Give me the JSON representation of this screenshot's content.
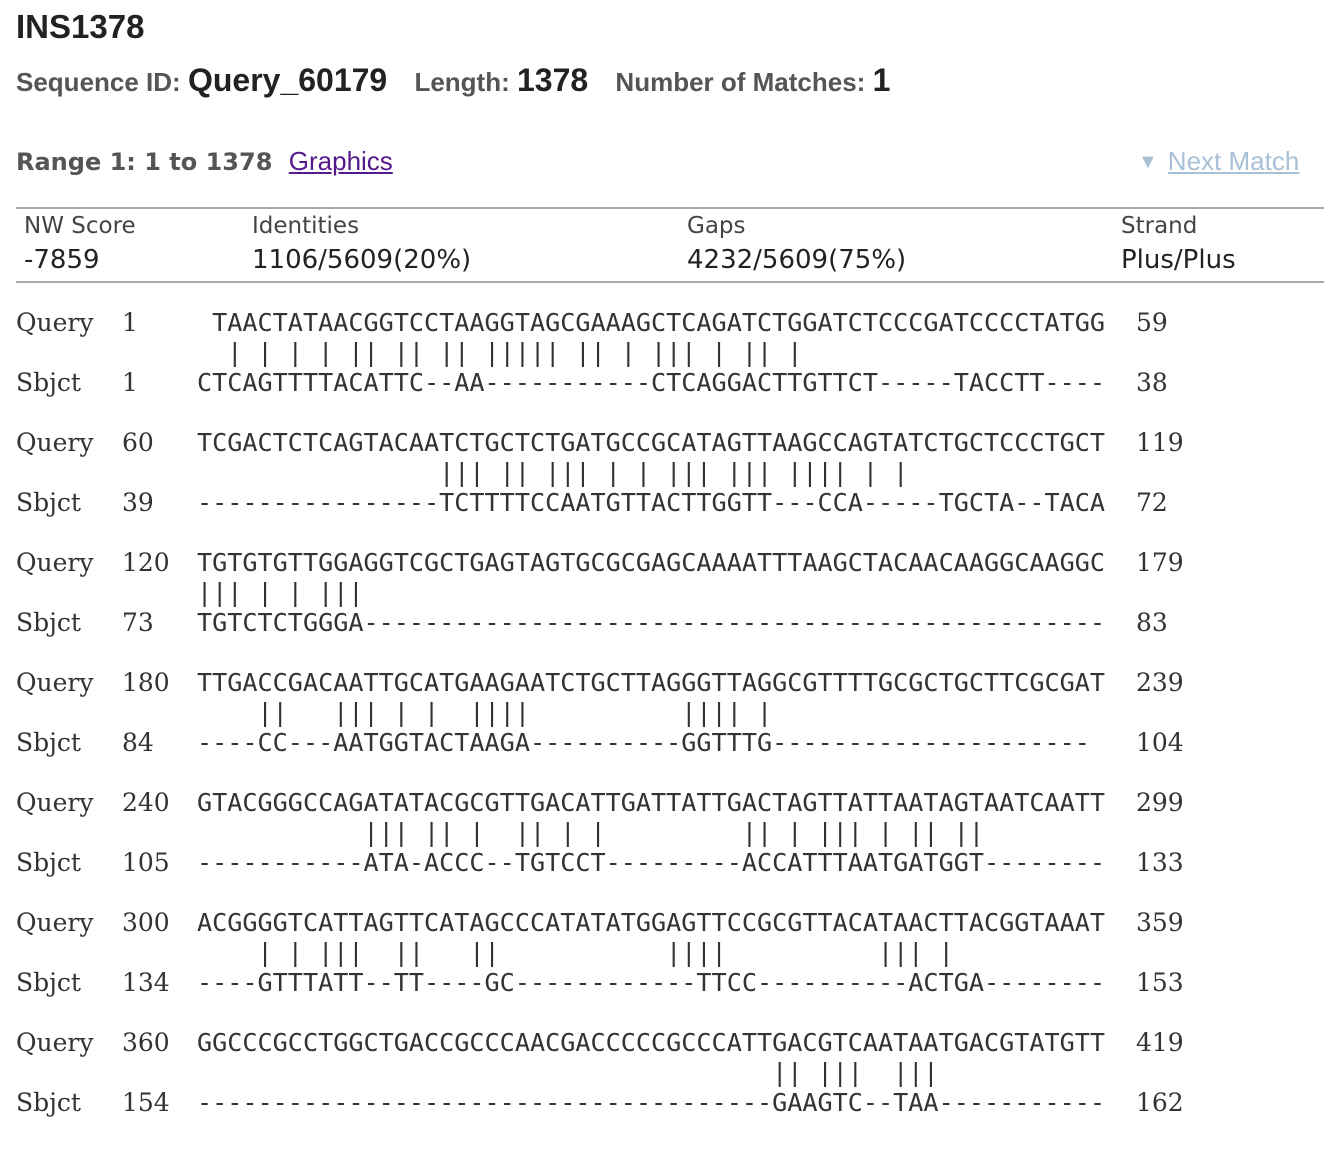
{
  "header": {
    "title": "INS1378",
    "seq_id_label": "Sequence ID:",
    "seq_id": "Query_60179",
    "length_label": "Length:",
    "length": "1378",
    "matches_label": "Number of Matches:",
    "matches": "1"
  },
  "range": {
    "label": "Range 1: 1 to 1378",
    "graphics_link": "Graphics",
    "next_match": "Next Match"
  },
  "stats": {
    "score_label": "NW Score",
    "score": "-7859",
    "identities_label": "Identities",
    "identities": "1106/5609(20%)",
    "gaps_label": "Gaps",
    "gaps": "4232/5609(75%)",
    "strand_label": "Strand",
    "strand": "Plus/Plus"
  },
  "alignment": [
    {
      "query_label": "Query",
      "query_start": "1",
      "query_seq": " TAACTATAACGGTCCTAAGGTAGCGAAAGCTCAGATCTGGATCTCCCGATCCCCTATGG",
      "query_end": "59",
      "match": "  | | | | || || || ||||| || | ||| | || |",
      "sbjct_label": "Sbjct",
      "sbjct_start": "1",
      "sbjct_seq": "CTCAGTTTTACATTC--AA-----------CTCAGGACTTGTTCT-----TACCTT----",
      "sbjct_end": "38"
    },
    {
      "query_label": "Query",
      "query_start": "60",
      "query_seq": "TCGACTCTCAGTACAATCTGCTCTGATGCCGCATAGTTAAGCCAGTATCTGCTCCCTGCT",
      "query_end": "119",
      "match": "                ||| || ||| | | ||| ||| |||| | |",
      "sbjct_label": "Sbjct",
      "sbjct_start": "39",
      "sbjct_seq": "----------------TCTTTTCCAATGTTACTTGGTT---CCA-----TGCTA--TACA",
      "sbjct_end": "72"
    },
    {
      "query_label": "Query",
      "query_start": "120",
      "query_seq": "TGTGTGTTGGAGGTCGCTGAGTAGTGCGCGAGCAAAATTTAAGCTACAACAAGGCAAGGC",
      "query_end": "179",
      "match": "||| | | |||",
      "sbjct_label": "Sbjct",
      "sbjct_start": "73",
      "sbjct_seq": "TGTCTCTGGGA-------------------------------------------------",
      "sbjct_end": "83"
    },
    {
      "query_label": "Query",
      "query_start": "180",
      "query_seq": "TTGACCGACAATTGCATGAAGAATCTGCTTAGGGTTAGGCGTTTTGCGCTGCTTCGCGAT",
      "query_end": "239",
      "match": "    ||   ||| | |  ||||          |||| |",
      "sbjct_label": "Sbjct",
      "sbjct_start": "84",
      "sbjct_seq": "----CC---AATGGTACTAAGA----------GGTTTG---------------------",
      "sbjct_end": "104"
    },
    {
      "query_label": "Query",
      "query_start": "240",
      "query_seq": "GTACGGGCCAGATATACGCGTTGACATTGATTATTGACTAGTTATTAATAGTAATCAATT",
      "query_end": "299",
      "match": "           ||| || |  || | |         || | ||| | || ||",
      "sbjct_label": "Sbjct",
      "sbjct_start": "105",
      "sbjct_seq": "-----------ATA-ACCC--TGTCCT---------ACCATTTAATGATGGT--------",
      "sbjct_end": "133"
    },
    {
      "query_label": "Query",
      "query_start": "300",
      "query_seq": "ACGGGGTCATTAGTTCATAGCCCATATATGGAGTTCCGCGTTACATAACTTACGGTAAAT",
      "query_end": "359",
      "match": "    | | |||  ||   ||           ||||          ||| |",
      "sbjct_label": "Sbjct",
      "sbjct_start": "134",
      "sbjct_seq": "----GTTTATT--TT----GC------------TTCC----------ACTGA--------",
      "sbjct_end": "153"
    },
    {
      "query_label": "Query",
      "query_start": "360",
      "query_seq": "GGCCCGCCTGGCTGACCGCCCAACGACCCCCGCCCATTGACGTCAATAATGACGTATGTT",
      "query_end": "419",
      "match": "                                      || |||  |||",
      "sbjct_label": "Sbjct",
      "sbjct_start": "154",
      "sbjct_seq": "--------------------------------------GAAGTC--TAA-----------",
      "sbjct_end": "162"
    }
  ]
}
